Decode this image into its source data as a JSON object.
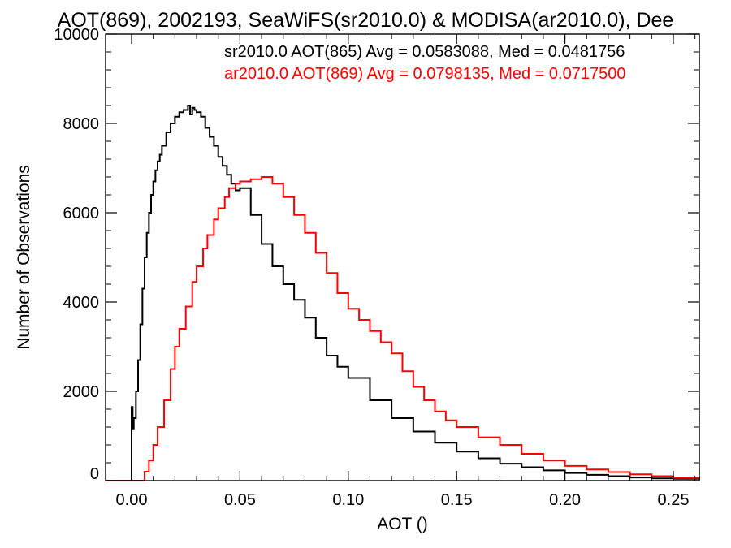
{
  "chart_data": {
    "type": "line",
    "title": "AOT(869), 2002193, SeaWiFS(sr2010.0) & MODISA(ar2010.0), Dee",
    "xlabel": "AOT ()",
    "ylabel": "Number of Observations",
    "xlim": [
      -0.012,
      0.262
    ],
    "ylim": [
      0,
      10000
    ],
    "x_ticks": [
      0.0,
      0.05,
      0.1,
      0.15,
      0.2,
      0.25
    ],
    "x_tick_labels": [
      "0.00",
      "0.05",
      "0.10",
      "0.15",
      "0.20",
      "0.25"
    ],
    "y_ticks": [
      0,
      2000,
      4000,
      6000,
      8000,
      10000
    ],
    "y_tick_labels": [
      "0",
      "2000",
      "4000",
      "6000",
      "8000",
      "10000"
    ],
    "grid": false,
    "step": true,
    "annotations": [
      {
        "text": "sr2010.0 AOT(865) Avg = 0.0583088, Med = 0.0481756",
        "color": "#000000"
      },
      {
        "text": "ar2010.0 AOT(869) Avg = 0.0798135, Med = 0.0717500",
        "color": "#ff0000"
      }
    ],
    "series": [
      {
        "color": "#000000",
        "x": [
          -0.012,
          -0.001,
          0.0,
          0.0005,
          0.001,
          0.002,
          0.003,
          0.004,
          0.005,
          0.006,
          0.007,
          0.008,
          0.009,
          0.01,
          0.011,
          0.012,
          0.013,
          0.014,
          0.016,
          0.018,
          0.02,
          0.022,
          0.024,
          0.026,
          0.027,
          0.028,
          0.029,
          0.03,
          0.032,
          0.034,
          0.036,
          0.038,
          0.04,
          0.042,
          0.044,
          0.046,
          0.048,
          0.05,
          0.055,
          0.06,
          0.065,
          0.07,
          0.075,
          0.08,
          0.085,
          0.09,
          0.095,
          0.1,
          0.11,
          0.12,
          0.13,
          0.14,
          0.15,
          0.16,
          0.17,
          0.18,
          0.19,
          0.2,
          0.21,
          0.22,
          0.23,
          0.24,
          0.25,
          0.262
        ],
        "values": [
          0,
          0,
          1650,
          1150,
          1400,
          2000,
          2700,
          3500,
          4300,
          5000,
          5550,
          6000,
          6400,
          6700,
          6950,
          7150,
          7300,
          7500,
          7800,
          8000,
          8150,
          8250,
          8300,
          8400,
          8200,
          8350,
          8300,
          8250,
          8150,
          7900,
          7700,
          7500,
          7250,
          7050,
          6850,
          6650,
          6500,
          6550,
          5950,
          5300,
          4800,
          4400,
          4050,
          3650,
          3200,
          2800,
          2550,
          2300,
          1800,
          1400,
          1100,
          850,
          650,
          500,
          380,
          300,
          230,
          170,
          130,
          100,
          70,
          50,
          40,
          20
        ]
      },
      {
        "color": "#ff0000",
        "x": [
          -0.012,
          0.0,
          0.004,
          0.006,
          0.008,
          0.01,
          0.012,
          0.015,
          0.018,
          0.02,
          0.022,
          0.025,
          0.028,
          0.03,
          0.033,
          0.035,
          0.038,
          0.04,
          0.043,
          0.045,
          0.048,
          0.05,
          0.055,
          0.06,
          0.065,
          0.07,
          0.075,
          0.08,
          0.085,
          0.09,
          0.095,
          0.1,
          0.105,
          0.11,
          0.115,
          0.12,
          0.125,
          0.13,
          0.135,
          0.14,
          0.145,
          0.15,
          0.16,
          0.17,
          0.18,
          0.19,
          0.2,
          0.21,
          0.22,
          0.23,
          0.24,
          0.25,
          0.262
        ],
        "values": [
          0,
          0,
          0,
          200,
          450,
          800,
          1200,
          1800,
          2500,
          3000,
          3400,
          3900,
          4450,
          4800,
          5200,
          5500,
          5850,
          6100,
          6350,
          6550,
          6650,
          6700,
          6750,
          6800,
          6650,
          6350,
          5950,
          5550,
          5100,
          4650,
          4200,
          3850,
          3600,
          3350,
          3100,
          2850,
          2450,
          2100,
          1800,
          1550,
          1350,
          1200,
          970,
          800,
          600,
          450,
          330,
          250,
          190,
          140,
          100,
          60,
          40
        ]
      }
    ]
  }
}
